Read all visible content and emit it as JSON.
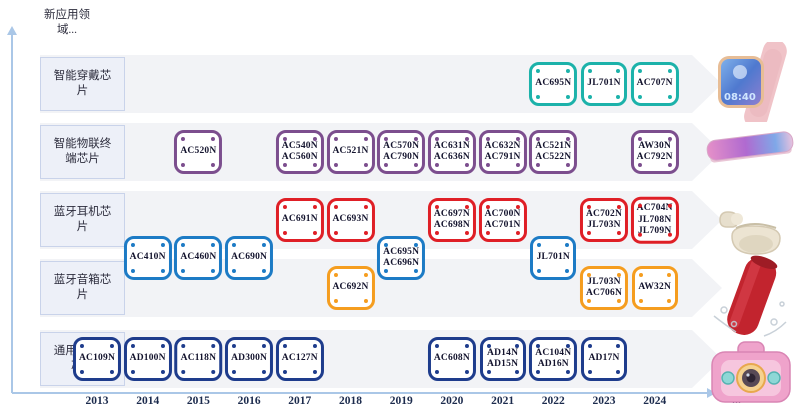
{
  "axis": {
    "new_area_label": "新应用领域...",
    "years": [
      "2013",
      "2014",
      "2015",
      "2016",
      "2017",
      "2018",
      "2019",
      "2020",
      "2021",
      "2022",
      "2023",
      "2024"
    ],
    "more_label": "..."
  },
  "colors": {
    "wearable": "#1cb2aa",
    "iot": "#7c4e8e",
    "earphone": "#df1f26",
    "mid_blue": "#1d7bc5",
    "speaker": "#f59d1f",
    "multimedia": "#1e3c8c",
    "band": "#f2f3f6",
    "axis": "#aac7e7"
  },
  "rows": [
    {
      "id": "wearable",
      "label": "智能穿戴芯片",
      "color": "#1cb2aa",
      "chips": [
        {
          "year": 2022,
          "lines": [
            "AC695N"
          ]
        },
        {
          "year": 2023,
          "lines": [
            "JL701N"
          ]
        },
        {
          "year": 2024,
          "lines": [
            "AC707N"
          ]
        }
      ]
    },
    {
      "id": "iot",
      "label": "智能物联终端芯片",
      "color": "#7c4e8e",
      "chips": [
        {
          "year": 2015,
          "lines": [
            "AC520N"
          ]
        },
        {
          "year": 2017,
          "lines": [
            "AC540N",
            "AC560N"
          ]
        },
        {
          "year": 2018,
          "lines": [
            "AC521N"
          ]
        },
        {
          "year": 2019,
          "lines": [
            "AC570N",
            "AC790N"
          ]
        },
        {
          "year": 2020,
          "lines": [
            "AC631N",
            "AC636N"
          ]
        },
        {
          "year": 2021,
          "lines": [
            "AC632N",
            "AC791N"
          ]
        },
        {
          "year": 2022,
          "lines": [
            "AC521N",
            "AC522N"
          ]
        },
        {
          "year": 2024,
          "lines": [
            "AW30N",
            "AC792N"
          ]
        }
      ]
    },
    {
      "id": "earphone",
      "label": "蓝牙耳机芯片",
      "color": "#df1f26",
      "chips": [
        {
          "year": 2017,
          "lines": [
            "AC691N"
          ]
        },
        {
          "year": 2018,
          "lines": [
            "AC693N"
          ]
        },
        {
          "year": 2020,
          "lines": [
            "AC697N",
            "AC698N"
          ]
        },
        {
          "year": 2021,
          "lines": [
            "AC700N",
            "AC701N"
          ]
        },
        {
          "year": 2023,
          "lines": [
            "AC702N",
            "JL703N"
          ]
        },
        {
          "year": 2024,
          "lines": [
            "AC704N",
            "JL708N",
            "JL709N"
          ]
        }
      ]
    },
    {
      "id": "speaker",
      "label": "蓝牙音箱芯片",
      "color": "#f59d1f",
      "chips": [
        {
          "year": 2018,
          "lines": [
            "AC692N"
          ]
        },
        {
          "year": 2023,
          "lines": [
            "JL703N",
            "AC706N"
          ]
        },
        {
          "year": 2024,
          "lines": [
            "AW32N"
          ]
        }
      ]
    },
    {
      "id": "multimedia",
      "label": "通用多媒体芯片",
      "color": "#1e3c8c",
      "chips": [
        {
          "year": 2013,
          "lines": [
            "AC109N"
          ]
        },
        {
          "year": 2014,
          "lines": [
            "AD100N"
          ]
        },
        {
          "year": 2015,
          "lines": [
            "AC118N"
          ]
        },
        {
          "year": 2016,
          "lines": [
            "AD300N"
          ]
        },
        {
          "year": 2017,
          "lines": [
            "AC127N"
          ]
        },
        {
          "year": 2020,
          "lines": [
            "AC608N"
          ]
        },
        {
          "year": 2021,
          "lines": [
            "AD14N",
            "AD15N"
          ]
        },
        {
          "year": 2022,
          "lines": [
            "AC104N",
            "AD16N"
          ]
        },
        {
          "year": 2023,
          "lines": [
            "AD17N"
          ]
        }
      ]
    }
  ],
  "mid_row": {
    "id": "mid-blue",
    "color": "#1d7bc5",
    "chips": [
      {
        "year": 2014,
        "lines": [
          "AC410N"
        ]
      },
      {
        "year": 2015,
        "lines": [
          "AC460N"
        ]
      },
      {
        "year": 2016,
        "lines": [
          "AC690N"
        ]
      },
      {
        "year": 2019,
        "lines": [
          "AC695N",
          "AC696N"
        ]
      },
      {
        "year": 2022,
        "lines": [
          "JL701N"
        ]
      }
    ]
  },
  "products": {
    "watch_time": "08:40",
    "images": [
      "smartwatch",
      "smartphone",
      "wireless-earbuds",
      "portable-speaker",
      "kids-camera"
    ]
  }
}
